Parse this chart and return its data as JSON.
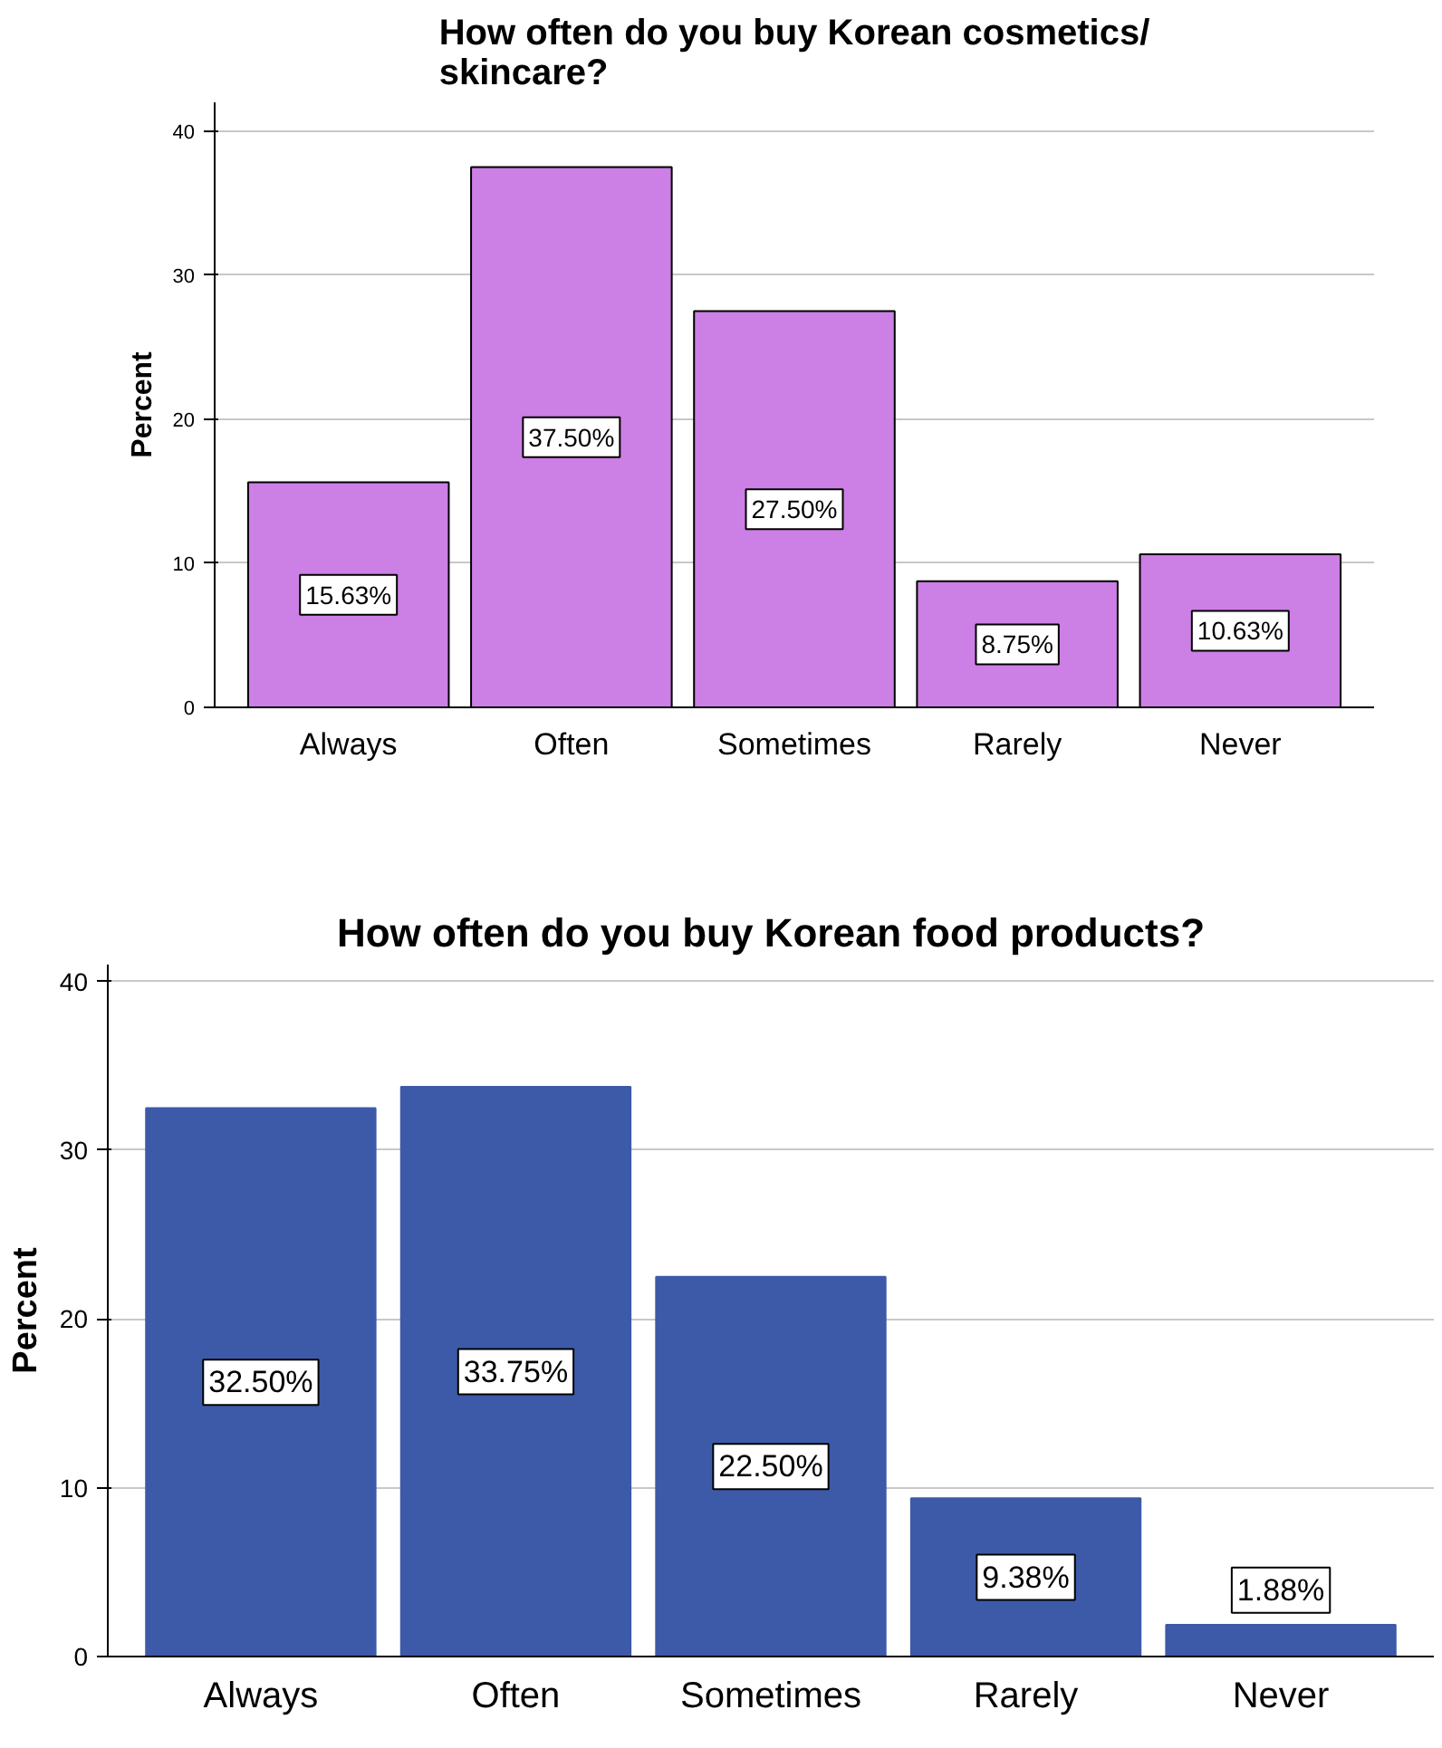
{
  "chart_data": [
    {
      "type": "bar",
      "title": "How often do you buy Korean cosmetics/\nskincare?",
      "ylabel": "Percent",
      "categories": [
        "Always",
        "Often",
        "Sometimes",
        "Rarely",
        "Never"
      ],
      "values": [
        15.63,
        37.5,
        27.5,
        8.75,
        10.63
      ],
      "value_labels": [
        "15.63%",
        "37.50%",
        "27.50%",
        "8.75%",
        "10.63%"
      ],
      "color": "#cc7fe4",
      "ylim": [
        0,
        42
      ],
      "yticks": [
        0,
        10,
        20,
        30,
        40
      ],
      "grid": "y"
    },
    {
      "type": "bar",
      "title": "How often do you buy Korean food products?",
      "ylabel": "Percent",
      "categories": [
        "Always",
        "Often",
        "Sometimes",
        "Rarely",
        "Never"
      ],
      "values": [
        32.5,
        33.75,
        22.5,
        9.38,
        1.88
      ],
      "value_labels": [
        "32.50%",
        "33.75%",
        "22.50%",
        "9.38%",
        "1.88%"
      ],
      "color": "#3d5aa8",
      "ylim": [
        0,
        41
      ],
      "yticks": [
        0,
        10,
        20,
        30,
        40
      ],
      "grid": "y"
    }
  ]
}
